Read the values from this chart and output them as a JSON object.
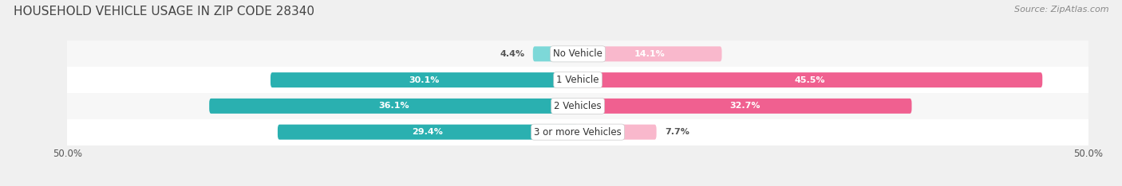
{
  "title": "HOUSEHOLD VEHICLE USAGE IN ZIP CODE 28340",
  "source": "Source: ZipAtlas.com",
  "categories": [
    "No Vehicle",
    "1 Vehicle",
    "2 Vehicles",
    "3 or more Vehicles"
  ],
  "owner_values": [
    4.4,
    30.1,
    36.1,
    29.4
  ],
  "renter_values": [
    14.1,
    45.5,
    32.7,
    7.7
  ],
  "owner_color_light": "#7dd8d8",
  "owner_color": "#2ab0b0",
  "renter_color_light": "#f9b8cc",
  "renter_color": "#f06090",
  "xlim": [
    -50,
    50
  ],
  "xticks": [
    -50,
    50
  ],
  "xticklabels": [
    "50.0%",
    "50.0%"
  ],
  "bar_height": 0.58,
  "title_fontsize": 11,
  "source_fontsize": 8,
  "label_fontsize": 8,
  "category_fontsize": 8.5,
  "legend_fontsize": 8.5,
  "axis_tick_fontsize": 8.5
}
